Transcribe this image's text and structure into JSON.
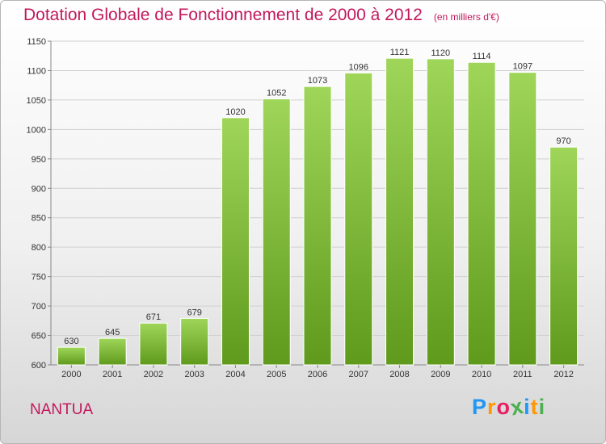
{
  "chart_data": {
    "type": "bar",
    "title": "Dotation Globale de Fonctionnement de 2000 à 2012",
    "unit": "(en milliers d'€)",
    "categories": [
      "2000",
      "2001",
      "2002",
      "2003",
      "2004",
      "2005",
      "2006",
      "2007",
      "2008",
      "2009",
      "2010",
      "2011",
      "2012"
    ],
    "values": [
      630,
      645,
      671,
      679,
      1020,
      1052,
      1073,
      1096,
      1121,
      1120,
      1114,
      1097,
      970
    ],
    "ylim": [
      600,
      1150
    ],
    "yticks": [
      600,
      650,
      700,
      750,
      800,
      850,
      900,
      950,
      1000,
      1050,
      1100,
      1150
    ],
    "grid": true,
    "bar_color": "#8cc63f"
  },
  "commune": "NANTUA",
  "logo": {
    "letters": [
      "P",
      "r",
      "o",
      "x",
      "i",
      "t",
      "i"
    ],
    "colors": [
      "#2196f3",
      "#ff9800",
      "#e91e63",
      "#4caf50",
      "#2196f3",
      "#ff9800",
      "#4caf50"
    ]
  },
  "colors": {
    "title": "#c2185b",
    "bar_top": "#9fd65a",
    "bar_bottom": "#5f9a1c"
  }
}
